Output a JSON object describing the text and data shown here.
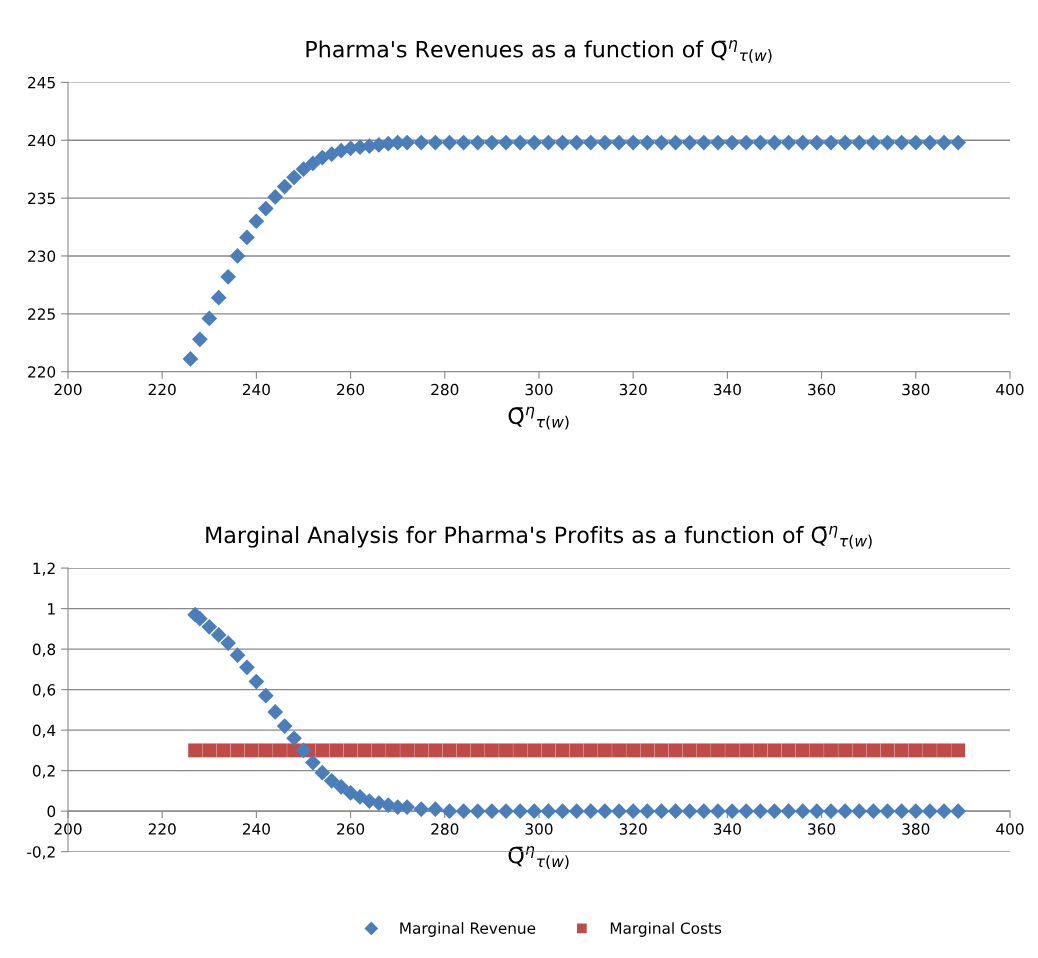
{
  "chart_data": [
    {
      "type": "scatter",
      "title": "Pharma's Revenues as a function of Q̄$^{η}$$_{τ(w)}$",
      "xlabel": "Q̄$^{η}$$_{τ(w)}$",
      "xlim": [
        200,
        400
      ],
      "xticks": [
        200,
        220,
        240,
        260,
        280,
        300,
        320,
        340,
        360,
        380,
        400
      ],
      "ylim": [
        220,
        245
      ],
      "yticks": [
        220,
        225,
        230,
        235,
        240,
        245
      ],
      "grid": "y",
      "marker": "diamond",
      "legend": false,
      "series": [
        {
          "color": "#4a7ebb",
          "x": [
            226,
            228,
            230,
            232,
            234,
            236,
            238,
            240,
            242,
            244,
            246,
            248,
            250,
            252,
            254,
            256,
            258,
            260,
            262,
            264,
            266,
            268,
            270,
            272,
            275,
            278,
            281,
            284,
            287,
            290,
            293,
            296,
            299,
            302,
            305,
            308,
            311,
            314,
            317,
            320,
            323,
            326,
            329,
            332,
            335,
            338,
            341,
            344,
            347,
            350,
            353,
            356,
            359,
            362,
            365,
            368,
            371,
            374,
            377,
            380,
            383,
            386,
            389
          ],
          "values": [
            221.1,
            222.8,
            224.6,
            226.4,
            228.2,
            230,
            231.6,
            233,
            234.1,
            235.1,
            236,
            236.8,
            237.5,
            238,
            238.5,
            238.8,
            239.1,
            239.3,
            239.4,
            239.5,
            239.6,
            239.7,
            239.8,
            239.8,
            239.8,
            239.8,
            239.8,
            239.8,
            239.8,
            239.8,
            239.8,
            239.8,
            239.8,
            239.8,
            239.8,
            239.8,
            239.8,
            239.8,
            239.8,
            239.8,
            239.8,
            239.8,
            239.8,
            239.8,
            239.8,
            239.8,
            239.8,
            239.8,
            239.8,
            239.8,
            239.8,
            239.8,
            239.8,
            239.8,
            239.8,
            239.8,
            239.8,
            239.8,
            239.8,
            239.8,
            239.8,
            239.8,
            239.8
          ]
        }
      ]
    },
    {
      "type": "scatter",
      "title": "Marginal Analysis for Pharma's Profits as a function of Q̄$^{η}$$_{τ(w)}$",
      "xlabel": "Q̄$^{η}$$_{τ(w)}$",
      "xlim": [
        200,
        400
      ],
      "xticks": [
        200,
        220,
        240,
        260,
        280,
        300,
        320,
        340,
        360,
        380,
        400
      ],
      "ylim": [
        -0.2,
        1.2
      ],
      "yticks": [
        {
          "value": -0.2,
          "label": "-0,2"
        },
        0,
        {
          "value": 0.2,
          "label": "0,2"
        },
        {
          "value": 0.4,
          "label": "0,4"
        },
        {
          "value": 0.6,
          "label": "0,6"
        },
        {
          "value": 0.8,
          "label": "0,8"
        },
        1,
        {
          "value": 1.2,
          "label": "1,2"
        }
      ],
      "grid": "y",
      "legend": "bottom",
      "series": [
        {
          "name": "Marginal Revenue",
          "color": "#4a7ebb",
          "marker": "diamond",
          "x": [
            227,
            228,
            230,
            232,
            234,
            236,
            238,
            240,
            242,
            244,
            246,
            248,
            250,
            252,
            254,
            256,
            258,
            260,
            262,
            264,
            266,
            268,
            270,
            272,
            275,
            278,
            281,
            284,
            287,
            290,
            293,
            296,
            299,
            302,
            305,
            308,
            311,
            314,
            317,
            320,
            323,
            326,
            329,
            332,
            335,
            338,
            341,
            344,
            347,
            350,
            353,
            356,
            359,
            362,
            365,
            368,
            371,
            374,
            377,
            380,
            383,
            386,
            389
          ],
          "values": [
            0.97,
            0.95,
            0.91,
            0.87,
            0.83,
            0.77,
            0.71,
            0.64,
            0.57,
            0.49,
            0.42,
            0.36,
            0.3,
            0.24,
            0.19,
            0.15,
            0.12,
            0.09,
            0.07,
            0.05,
            0.04,
            0.03,
            0.02,
            0.02,
            0.01,
            0.01,
            0,
            0,
            0,
            0,
            0,
            0,
            0,
            0,
            0,
            0,
            0,
            0,
            0,
            0,
            0,
            0,
            0,
            0,
            0,
            0,
            0,
            0,
            0,
            0,
            0,
            0,
            0,
            0,
            0,
            0,
            0,
            0,
            0,
            0,
            0,
            0,
            0
          ]
        },
        {
          "name": "Marginal Costs",
          "color": "#be4b48",
          "marker": "square",
          "x": [
            227,
            230,
            233,
            236,
            239,
            242,
            245,
            248,
            251,
            254,
            257,
            260,
            263,
            266,
            269,
            272,
            275,
            278,
            281,
            284,
            287,
            290,
            293,
            296,
            299,
            302,
            305,
            308,
            311,
            314,
            317,
            320,
            323,
            326,
            329,
            332,
            335,
            338,
            341,
            344,
            347,
            350,
            353,
            356,
            359,
            362,
            365,
            368,
            371,
            374,
            377,
            380,
            383,
            386,
            389
          ],
          "values": [
            0.3,
            0.3,
            0.3,
            0.3,
            0.3,
            0.3,
            0.3,
            0.3,
            0.3,
            0.3,
            0.3,
            0.3,
            0.3,
            0.3,
            0.3,
            0.3,
            0.3,
            0.3,
            0.3,
            0.3,
            0.3,
            0.3,
            0.3,
            0.3,
            0.3,
            0.3,
            0.3,
            0.3,
            0.3,
            0.3,
            0.3,
            0.3,
            0.3,
            0.3,
            0.3,
            0.3,
            0.3,
            0.3,
            0.3,
            0.3,
            0.3,
            0.3,
            0.3,
            0.3,
            0.3,
            0.3,
            0.3,
            0.3,
            0.3,
            0.3,
            0.3,
            0.3,
            0.3,
            0.3,
            0.3
          ]
        }
      ]
    }
  ]
}
